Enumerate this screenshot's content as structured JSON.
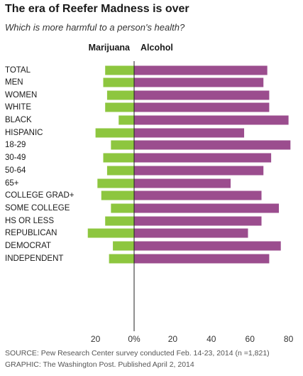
{
  "title": "The era of Reefer Madness is over",
  "subtitle": "Which is more harmful to a person's health?",
  "footer": {
    "source": "SOURCE: Pew Research Center survey conducted Feb. 14-23, 2014 (n =1,821)",
    "graphic": "GRAPHIC: The Washington Post. Published April 2, 2014"
  },
  "chart_data": {
    "type": "bar",
    "orientation": "horizontal-diverging",
    "title": "The era of Reefer Madness is over",
    "subtitle": "Which is more harmful to a person's health?",
    "categories": [
      "TOTAL",
      "MEN",
      "WOMEN",
      "WHITE",
      "BLACK",
      "HISPANIC",
      "18-29",
      "30-49",
      "50-64",
      "65+",
      "COLLEGE GRAD+",
      "SOME COLLEGE",
      "HS OR LESS",
      "REPUBLICAN",
      "DEMOCRAT",
      "INDEPENDENT"
    ],
    "groups": [
      [
        "TOTAL"
      ],
      [
        "MEN",
        "WOMEN"
      ],
      [
        "WHITE",
        "BLACK",
        "HISPANIC"
      ],
      [
        "18-29",
        "30-49",
        "50-64",
        "65+"
      ],
      [
        "COLLEGE GRAD+",
        "SOME COLLEGE",
        "HS OR LESS"
      ],
      [
        "REPUBLICAN",
        "DEMOCRAT",
        "INDEPENDENT"
      ]
    ],
    "series": [
      {
        "name": "Marijuana",
        "color": "#8dc63f",
        "direction": "left",
        "values": [
          15,
          16,
          14,
          15,
          8,
          20,
          12,
          16,
          14,
          19,
          17,
          12,
          15,
          24,
          11,
          13
        ]
      },
      {
        "name": "Alcohol",
        "color": "#9b4d8e",
        "direction": "right",
        "values": [
          69,
          67,
          70,
          70,
          80,
          57,
          81,
          71,
          67,
          50,
          66,
          75,
          66,
          59,
          76,
          70
        ]
      }
    ],
    "xlim": [
      -30,
      80
    ],
    "xticks": [
      -20,
      0,
      20,
      40,
      60,
      80
    ],
    "xtick_labels": [
      "20",
      "0%",
      "20",
      "40",
      "60",
      "80"
    ],
    "grid": false
  }
}
